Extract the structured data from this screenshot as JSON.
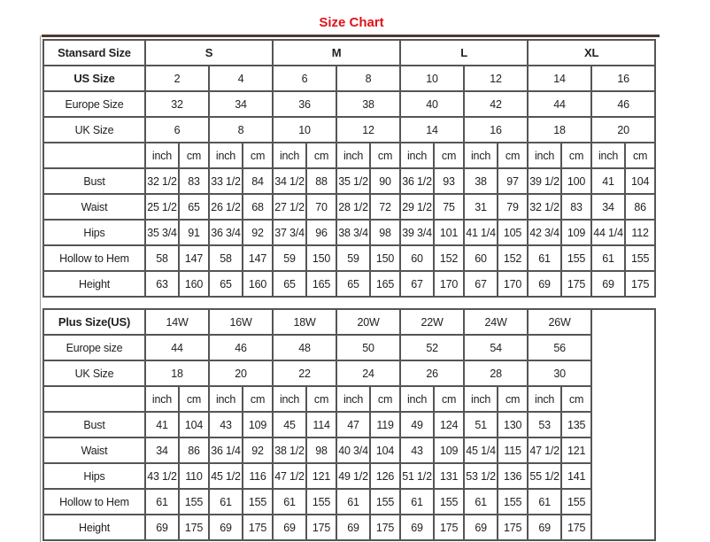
{
  "title": "Size Chart",
  "standard": {
    "header_label": "Stansard Size",
    "groups": [
      "S",
      "M",
      "L",
      "XL"
    ],
    "rows": [
      {
        "label": "US Size",
        "values": [
          "2",
          "4",
          "6",
          "8",
          "10",
          "12",
          "14",
          "16"
        ]
      },
      {
        "label": "Europe Size",
        "values": [
          "32",
          "34",
          "36",
          "38",
          "40",
          "42",
          "44",
          "46"
        ]
      },
      {
        "label": "UK Size",
        "values": [
          "6",
          "8",
          "10",
          "12",
          "14",
          "16",
          "18",
          "20"
        ]
      }
    ],
    "unit_labels": [
      "inch",
      "cm"
    ],
    "measurements": [
      {
        "label": "Bust",
        "values": [
          "32 1/2",
          "83",
          "33 1/2",
          "84",
          "34 1/2",
          "88",
          "35 1/2",
          "90",
          "36 1/2",
          "93",
          "38",
          "97",
          "39 1/2",
          "100",
          "41",
          "104"
        ]
      },
      {
        "label": "Waist",
        "values": [
          "25 1/2",
          "65",
          "26 1/2",
          "68",
          "27 1/2",
          "70",
          "28 1/2",
          "72",
          "29 1/2",
          "75",
          "31",
          "79",
          "32 1/2",
          "83",
          "34",
          "86"
        ]
      },
      {
        "label": "Hips",
        "values": [
          "35 3/4",
          "91",
          "36 3/4",
          "92",
          "37 3/4",
          "96",
          "38 3/4",
          "98",
          "39 3/4",
          "101",
          "41 1/4",
          "105",
          "42 3/4",
          "109",
          "44 1/4",
          "112"
        ]
      },
      {
        "label": "Hollow to Hem",
        "values": [
          "58",
          "147",
          "58",
          "147",
          "59",
          "150",
          "59",
          "150",
          "60",
          "152",
          "60",
          "152",
          "61",
          "155",
          "61",
          "155"
        ]
      },
      {
        "label": "Height",
        "values": [
          "63",
          "160",
          "65",
          "160",
          "65",
          "165",
          "65",
          "165",
          "67",
          "170",
          "67",
          "170",
          "69",
          "175",
          "69",
          "175"
        ]
      }
    ]
  },
  "plus": {
    "header_label": "Plus Size(US)",
    "sizes": [
      "14W",
      "16W",
      "18W",
      "20W",
      "22W",
      "24W",
      "26W"
    ],
    "rows": [
      {
        "label": "Europe size",
        "values": [
          "44",
          "46",
          "48",
          "50",
          "52",
          "54",
          "56"
        ]
      },
      {
        "label": "UK Size",
        "values": [
          "18",
          "20",
          "22",
          "24",
          "26",
          "28",
          "30"
        ]
      }
    ],
    "unit_labels": [
      "inch",
      "cm"
    ],
    "measurements": [
      {
        "label": "Bust",
        "values": [
          "41",
          "104",
          "43",
          "109",
          "45",
          "114",
          "47",
          "119",
          "49",
          "124",
          "51",
          "130",
          "53",
          "135"
        ]
      },
      {
        "label": "Waist",
        "values": [
          "34",
          "86",
          "36 1/4",
          "92",
          "38 1/2",
          "98",
          "40 3/4",
          "104",
          "43",
          "109",
          "45 1/4",
          "115",
          "47 1/2",
          "121"
        ]
      },
      {
        "label": "Hips",
        "values": [
          "43 1/2",
          "110",
          "45 1/2",
          "116",
          "47 1/2",
          "121",
          "49 1/2",
          "126",
          "51 1/2",
          "131",
          "53 1/2",
          "136",
          "55 1/2",
          "141"
        ]
      },
      {
        "label": "Hollow to Hem",
        "values": [
          "61",
          "155",
          "61",
          "155",
          "61",
          "155",
          "61",
          "155",
          "61",
          "155",
          "61",
          "155",
          "61",
          "155"
        ]
      },
      {
        "label": "Height",
        "values": [
          "69",
          "175",
          "69",
          "175",
          "69",
          "175",
          "69",
          "175",
          "69",
          "175",
          "69",
          "175",
          "69",
          "175"
        ]
      }
    ]
  }
}
